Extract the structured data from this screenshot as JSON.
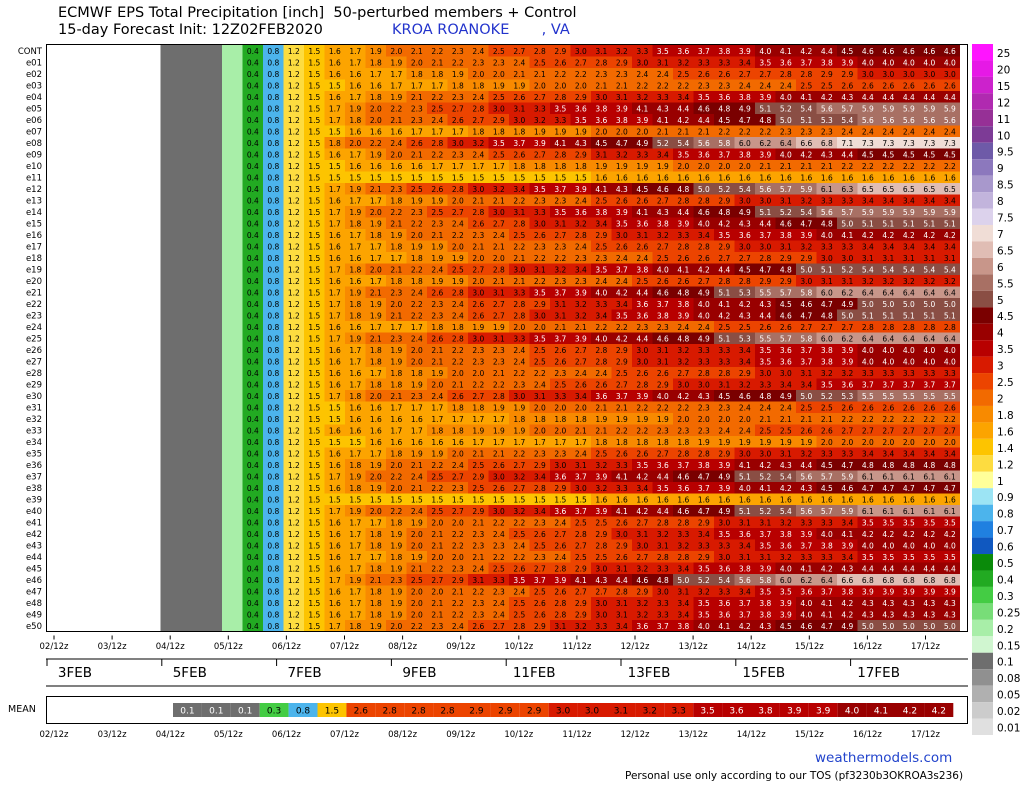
{
  "header": {
    "title_line1": "ECMWF EPS Total Precipitation [inch]  50-perturbed members + Control",
    "title_line2": "15-day Forecast Init: 12Z02FEB2020",
    "station": "KROA ROANOKE       , VA"
  },
  "footer": {
    "watermark": "weathermodels.com",
    "disclaimer": "Personal use only according to our TOS (pf3230b3OKROA3s236)"
  },
  "mean_label": "MEAN",
  "chart_data": {
    "type": "heatmap",
    "title": "ECMWF EPS Total Precipitation [inch]  50-perturbed members + Control",
    "time_tick_labels": [
      "02/12z",
      "03/12z",
      "04/12z",
      "05/12z",
      "06/12z",
      "07/12z",
      "08/12z",
      "09/12z",
      "10/12z",
      "11/12z",
      "12/12z",
      "13/12z",
      "14/12z",
      "15/12z",
      "16/12z",
      "17/12z"
    ],
    "date_labels": [
      "3FEB",
      "5FEB",
      "7FEB",
      "9FEB",
      "11FEB",
      "13FEB",
      "15FEB",
      "17FEB"
    ],
    "members": [
      "CONT",
      "e01",
      "e02",
      "e03",
      "e04",
      "e05",
      "e06",
      "e07",
      "e08",
      "e09",
      "e10",
      "e11",
      "e12",
      "e13",
      "e14",
      "e15",
      "e16",
      "e17",
      "e18",
      "e19",
      "e20",
      "e21",
      "e22",
      "e23",
      "e24",
      "e25",
      "e26",
      "e27",
      "e28",
      "e29",
      "e30",
      "e31",
      "e32",
      "e33",
      "e34",
      "e35",
      "e36",
      "e37",
      "e38",
      "e39",
      "e40",
      "e41",
      "e42",
      "e43",
      "e44",
      "e45",
      "e46",
      "e47",
      "e48",
      "e49",
      "e50"
    ],
    "member_finals": [
      4.6,
      4.0,
      3.0,
      2.6,
      4.4,
      5.9,
      5.6,
      2.4,
      7.3,
      4.5,
      2.2,
      1.6,
      6.5,
      3.4,
      5.9,
      5.1,
      4.2,
      3.4,
      3.1,
      5.4,
      3.2,
      6.4,
      5.0,
      5.1,
      2.8,
      6.4,
      4.0,
      4.0,
      3.3,
      3.7,
      5.5,
      2.6,
      2.2,
      2.7,
      2.0,
      3.4,
      4.8,
      6.1,
      4.7,
      1.6,
      6.1,
      3.5,
      4.2,
      4.0,
      3.5,
      4.4,
      6.8,
      3.9,
      4.3,
      4.3,
      5.0
    ],
    "mean": [
      "0.1",
      "0.1",
      "0.1",
      "0.3",
      "0.8",
      "1.5",
      "2.6",
      "2.8",
      "2.8",
      "2.8",
      "2.9",
      "2.9",
      "2.9",
      "3.0",
      "3.0",
      "3.1",
      "3.2",
      "3.3",
      "3.5",
      "3.6",
      "3.8",
      "3.9",
      "3.9",
      "4.0",
      "4.1",
      "4.2",
      "4.2"
    ],
    "colorbar_labels": [
      "25",
      "20",
      "15",
      "12",
      "11",
      "10",
      "9.5",
      "9",
      "8.5",
      "8",
      "7.5",
      "7",
      "6.5",
      "6",
      "5.5",
      "5",
      "4.5",
      "4",
      "3.5",
      "3",
      "2.5",
      "2",
      "1.8",
      "1.6",
      "1.4",
      "1.2",
      "1",
      "0.9",
      "0.8",
      "0.7",
      "0.6",
      "0.5",
      "0.4",
      "0.3",
      "0.25",
      "0.2",
      "0.15",
      "0.1",
      "0.08",
      "0.05",
      "0.02",
      "0.01"
    ],
    "colorbar_colors": [
      "#ff14ff",
      "#e619e6",
      "#cc22cc",
      "#b02ab0",
      "#963096",
      "#7d3b96",
      "#6e5aa8",
      "#8c78bd",
      "#a898cc",
      "#c2b4dc",
      "#dcd2ec",
      "#f0ddd6",
      "#e0bdb4",
      "#c8968a",
      "#a87064",
      "#8a4e44",
      "#7a0000",
      "#990000",
      "#b80000",
      "#d81a00",
      "#ec4400",
      "#f26a00",
      "#f88a00",
      "#fca400",
      "#fdc400",
      "#fddc40",
      "#ffff9a",
      "#9ce4f4",
      "#4cb4ec",
      "#2080e0",
      "#1058c0",
      "#0a8a0a",
      "#22aa22",
      "#44cc44",
      "#78dd78",
      "#a8eea8",
      "#d0f6d0",
      "#6e6e6e",
      "#909090",
      "#b0b0b0",
      "#cccccc",
      "#e0e0e0"
    ],
    "legend_placement": "right",
    "grid": true
  }
}
